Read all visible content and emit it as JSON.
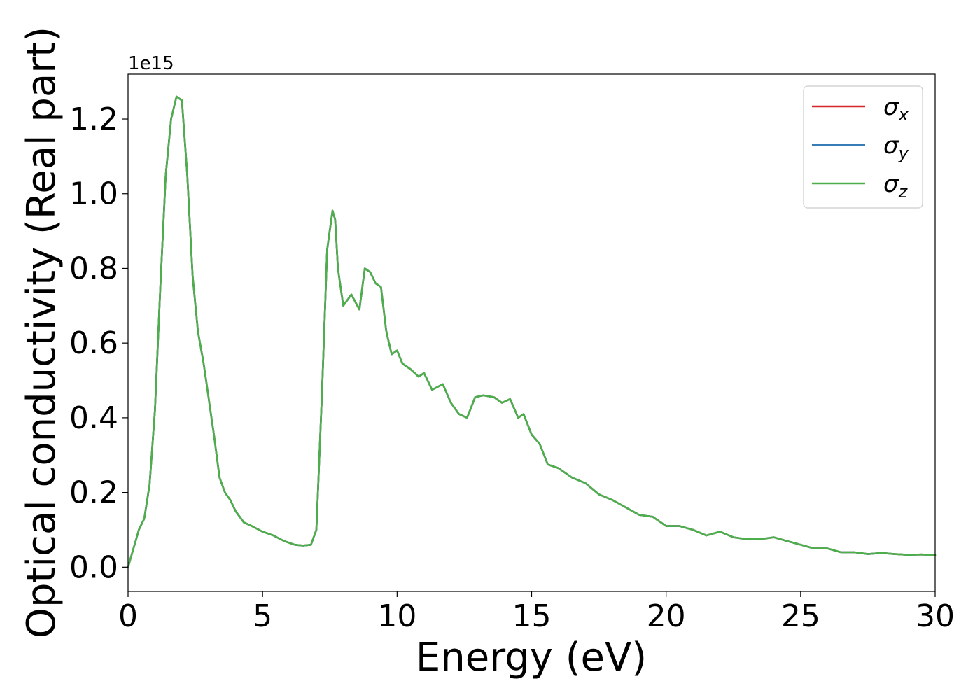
{
  "chart_data": {
    "type": "line",
    "xlabel": "Energy (eV)",
    "ylabel": "Optical conductivity (Real part)",
    "y_offset_label": "1e15",
    "xlim": [
      0,
      30
    ],
    "ylim": [
      -0.065,
      1.32
    ],
    "y_scale_note": "values in units of 1e15",
    "grid": false,
    "legend_position": "top-right",
    "x_ticks": [
      0,
      5,
      10,
      15,
      20,
      25,
      30
    ],
    "x_tick_labels": [
      "0",
      "5",
      "10",
      "15",
      "20",
      "25",
      "30"
    ],
    "y_ticks": [
      0.0,
      0.2,
      0.4,
      0.6,
      0.8,
      1.0,
      1.2
    ],
    "y_tick_labels": [
      "0.0",
      "0.2",
      "0.4",
      "0.6",
      "0.8",
      "1.0",
      "1.2"
    ],
    "x": [
      0,
      0.2,
      0.4,
      0.6,
      0.8,
      1.0,
      1.2,
      1.4,
      1.6,
      1.8,
      2.0,
      2.2,
      2.4,
      2.6,
      2.8,
      3.0,
      3.2,
      3.4,
      3.6,
      3.8,
      4.0,
      4.3,
      4.6,
      5.0,
      5.4,
      5.8,
      6.2,
      6.5,
      6.8,
      7.0,
      7.2,
      7.4,
      7.6,
      7.7,
      7.8,
      8.0,
      8.3,
      8.6,
      8.8,
      9.0,
      9.2,
      9.4,
      9.6,
      9.8,
      10.0,
      10.2,
      10.5,
      10.8,
      11.0,
      11.3,
      11.7,
      12.0,
      12.3,
      12.6,
      12.9,
      13.2,
      13.6,
      13.9,
      14.2,
      14.5,
      14.7,
      15.0,
      15.3,
      15.6,
      16.0,
      16.5,
      17.0,
      17.5,
      18.0,
      18.5,
      19.0,
      19.5,
      20.0,
      20.5,
      21.0,
      21.5,
      22.0,
      22.5,
      23.0,
      23.5,
      24.0,
      24.5,
      25.0,
      25.5,
      26.0,
      26.5,
      27.0,
      27.5,
      28.0,
      28.5,
      29.0,
      29.5,
      30.0
    ],
    "series": [
      {
        "name": "σx",
        "symbol": "σ",
        "subscript": "x",
        "color": "#d62728",
        "values": [
          0.0,
          0.05,
          0.1,
          0.13,
          0.22,
          0.42,
          0.75,
          1.05,
          1.2,
          1.26,
          1.25,
          1.05,
          0.78,
          0.63,
          0.55,
          0.45,
          0.35,
          0.24,
          0.2,
          0.18,
          0.15,
          0.12,
          0.11,
          0.095,
          0.085,
          0.07,
          0.06,
          0.058,
          0.06,
          0.1,
          0.45,
          0.85,
          0.955,
          0.93,
          0.8,
          0.7,
          0.73,
          0.69,
          0.8,
          0.79,
          0.76,
          0.75,
          0.63,
          0.57,
          0.58,
          0.545,
          0.53,
          0.51,
          0.52,
          0.475,
          0.49,
          0.44,
          0.41,
          0.4,
          0.455,
          0.46,
          0.455,
          0.44,
          0.45,
          0.4,
          0.41,
          0.355,
          0.33,
          0.275,
          0.265,
          0.24,
          0.225,
          0.195,
          0.18,
          0.16,
          0.14,
          0.135,
          0.11,
          0.11,
          0.1,
          0.085,
          0.095,
          0.08,
          0.075,
          0.075,
          0.08,
          0.07,
          0.06,
          0.05,
          0.05,
          0.04,
          0.04,
          0.035,
          0.038,
          0.035,
          0.033,
          0.034,
          0.032
        ]
      },
      {
        "name": "σy",
        "symbol": "σ",
        "subscript": "y",
        "color": "#377eb8",
        "values": [
          0.0,
          0.05,
          0.1,
          0.13,
          0.22,
          0.42,
          0.75,
          1.05,
          1.2,
          1.26,
          1.25,
          1.05,
          0.78,
          0.63,
          0.55,
          0.45,
          0.35,
          0.24,
          0.2,
          0.18,
          0.15,
          0.12,
          0.11,
          0.095,
          0.085,
          0.07,
          0.06,
          0.058,
          0.06,
          0.1,
          0.45,
          0.85,
          0.955,
          0.93,
          0.8,
          0.7,
          0.73,
          0.69,
          0.8,
          0.79,
          0.76,
          0.75,
          0.63,
          0.57,
          0.58,
          0.545,
          0.53,
          0.51,
          0.52,
          0.475,
          0.49,
          0.44,
          0.41,
          0.4,
          0.455,
          0.46,
          0.455,
          0.44,
          0.45,
          0.4,
          0.41,
          0.355,
          0.33,
          0.275,
          0.265,
          0.24,
          0.225,
          0.195,
          0.18,
          0.16,
          0.14,
          0.135,
          0.11,
          0.11,
          0.1,
          0.085,
          0.095,
          0.08,
          0.075,
          0.075,
          0.08,
          0.07,
          0.06,
          0.05,
          0.05,
          0.04,
          0.04,
          0.035,
          0.038,
          0.035,
          0.033,
          0.034,
          0.032
        ]
      },
      {
        "name": "σz",
        "symbol": "σ",
        "subscript": "z",
        "color": "#4daf4a",
        "values": [
          0.0,
          0.05,
          0.1,
          0.13,
          0.22,
          0.42,
          0.75,
          1.05,
          1.2,
          1.26,
          1.25,
          1.05,
          0.78,
          0.63,
          0.55,
          0.45,
          0.35,
          0.24,
          0.2,
          0.18,
          0.15,
          0.12,
          0.11,
          0.095,
          0.085,
          0.07,
          0.06,
          0.058,
          0.06,
          0.1,
          0.45,
          0.85,
          0.955,
          0.93,
          0.8,
          0.7,
          0.73,
          0.69,
          0.8,
          0.79,
          0.76,
          0.75,
          0.63,
          0.57,
          0.58,
          0.545,
          0.53,
          0.51,
          0.52,
          0.475,
          0.49,
          0.44,
          0.41,
          0.4,
          0.455,
          0.46,
          0.455,
          0.44,
          0.45,
          0.4,
          0.41,
          0.355,
          0.33,
          0.275,
          0.265,
          0.24,
          0.225,
          0.195,
          0.18,
          0.16,
          0.14,
          0.135,
          0.11,
          0.11,
          0.1,
          0.085,
          0.095,
          0.08,
          0.075,
          0.075,
          0.08,
          0.07,
          0.06,
          0.05,
          0.05,
          0.04,
          0.04,
          0.035,
          0.038,
          0.035,
          0.033,
          0.034,
          0.032
        ]
      }
    ]
  }
}
